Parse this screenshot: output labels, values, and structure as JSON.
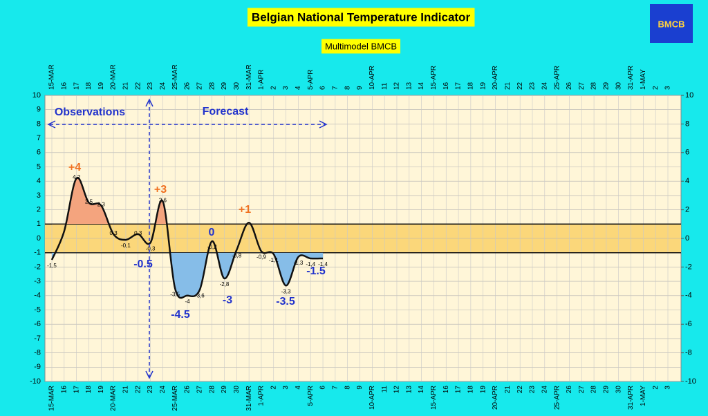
{
  "chart_data": {
    "type": "line",
    "title": "Belgian National Temperature Indicator",
    "subtitle": "Multimodel BMCB",
    "logo": "BMCB",
    "categories": [
      "15-MAR",
      "16",
      "17",
      "18",
      "19",
      "20-MAR",
      "21",
      "22",
      "23",
      "24",
      "25-MAR",
      "26",
      "27",
      "28",
      "29",
      "30",
      "31-MAR",
      "1-APR",
      "2",
      "3",
      "4",
      "5-APR",
      "6",
      "7",
      "8",
      "9",
      "10-APR",
      "11",
      "12",
      "13",
      "14",
      "15-APR",
      "16",
      "17",
      "18",
      "19",
      "20-APR",
      "21",
      "22",
      "23",
      "24",
      "25-APR",
      "26",
      "27",
      "28",
      "29",
      "30",
      "31-APR",
      "1-MAY",
      "2",
      "3"
    ],
    "series": [
      {
        "name": "Indicator",
        "color": "#111111",
        "values": [
          -1.5,
          0.5,
          4.2,
          2.5,
          2.3,
          0.3,
          -0.1,
          0.3,
          -0.3,
          2.6,
          -3.5,
          -4,
          -3.6,
          -0.2,
          -2.8,
          -0.8,
          1.1,
          -0.9,
          -1.1,
          -3.3,
          -1.3,
          -1.4,
          -1.4,
          null,
          null,
          null,
          null,
          null,
          null,
          null,
          null,
          null,
          null,
          null,
          null,
          null,
          null,
          null,
          null,
          null,
          null,
          null,
          null,
          null,
          null,
          null,
          null,
          null,
          null,
          null,
          null
        ],
        "value_labels": [
          "-1,5",
          null,
          "4,2",
          "2,5",
          "2,3",
          "0,3",
          "-0,1",
          "0,3",
          "-0,3",
          "2,6",
          "-3,5",
          "-4",
          "-3,6",
          "-0,2",
          "-2,8",
          "-0,8",
          null,
          "-0,9",
          "-1,1",
          "-3,3",
          "-1,3",
          "-1,4",
          "-1,4",
          null,
          null,
          null,
          null,
          null,
          null,
          null,
          null,
          null,
          null,
          null,
          null,
          null,
          null,
          null,
          null,
          null,
          null,
          null,
          null,
          null,
          null,
          null,
          null,
          null,
          null,
          null,
          null
        ]
      }
    ],
    "band": [
      -1,
      1
    ],
    "ylim": [
      -10,
      10
    ],
    "yticks": [
      -10,
      -9,
      -8,
      -7,
      -6,
      -5,
      -4,
      -3,
      -2,
      -1,
      0,
      1,
      2,
      3,
      4,
      5,
      6,
      7,
      8,
      9,
      10
    ],
    "y2lim": [
      -10,
      10
    ],
    "y2ticks": [
      -10,
      -8,
      -6,
      -4,
      -2,
      0,
      2,
      4,
      6,
      8,
      10
    ],
    "grid": true,
    "annotations": [
      "+4",
      "+3",
      "0",
      "+1",
      "-0.5",
      "-4.5",
      "-3",
      "-3.5",
      "-1.5",
      "Observations",
      "Forecast"
    ]
  }
}
